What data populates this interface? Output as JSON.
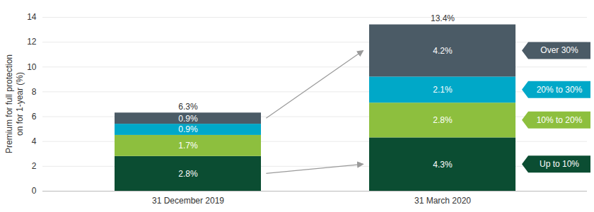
{
  "chart_data": {
    "type": "bar",
    "stacked": true,
    "data_labels": true,
    "grid": true,
    "legend": "right",
    "y_label": "Premium for full protection on for 1-year (%)",
    "categories": [
      "31 December 2019",
      "31 March 2020"
    ],
    "series": [
      {
        "name": "Up to 10%",
        "color": "#0b4d32",
        "values": [
          2.8,
          4.3
        ],
        "value_labels": [
          "2.8%",
          "4.3%"
        ]
      },
      {
        "name": "10% to 20%",
        "color": "#8dbf3e",
        "values": [
          1.7,
          2.8
        ],
        "value_labels": [
          "1.7%",
          "2.8%"
        ]
      },
      {
        "name": "20% to 30%",
        "color": "#00a8c8",
        "values": [
          0.9,
          2.1
        ],
        "value_labels": [
          "0.9%",
          "2.1%"
        ]
      },
      {
        "name": "Over 30%",
        "color": "#4b5b66",
        "values": [
          0.9,
          4.2
        ],
        "value_labels": [
          "0.9%",
          "4.2%"
        ]
      }
    ],
    "totals": [
      6.3,
      13.4
    ],
    "total_labels": [
      "6.3%",
      "13.4%"
    ],
    "ylim": [
      0,
      14
    ],
    "yticks": [
      0,
      2,
      4,
      6,
      8,
      10,
      12,
      14
    ]
  }
}
